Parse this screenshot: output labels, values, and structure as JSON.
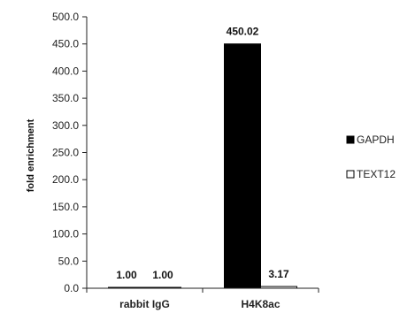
{
  "chart_data": {
    "type": "bar",
    "categories": [
      "rabbit IgG",
      "H4K8ac"
    ],
    "series": [
      {
        "name": "GAPDH",
        "values": [
          1.0,
          450.02
        ],
        "labels": [
          "1.00",
          "450.02"
        ],
        "color": "#000000"
      },
      {
        "name": "TEXT12",
        "values": [
          1.0,
          3.17
        ],
        "labels": [
          "1.00",
          "3.17"
        ],
        "color": "#ffffff"
      }
    ],
    "ylabel": "fold enrichment",
    "xlabel": "",
    "ylim": [
      0,
      500
    ],
    "yticks": [
      "0.0",
      "50.0",
      "100.0",
      "150.0",
      "200.0",
      "250.0",
      "300.0",
      "350.0",
      "400.0",
      "450.0",
      "500.0"
    ],
    "grid": false,
    "legend_position": "right"
  }
}
